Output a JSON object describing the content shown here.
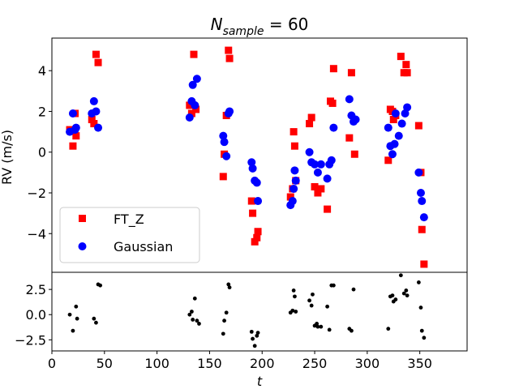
{
  "chart_data": [
    {
      "type": "scatter",
      "panel": "top",
      "title": {
        "main": "N",
        "sub": "sample",
        "rest": " = 60"
      },
      "xlabel": "",
      "ylabel": "RV (m/s)",
      "xlim": [
        0,
        395
      ],
      "ylim": [
        -5.9,
        5.6
      ],
      "y_ticks": [
        4,
        2,
        0,
        -2,
        -4
      ],
      "tick_labels": [
        "4",
        "2",
        "0",
        "−2",
        "−4"
      ],
      "grid": false,
      "legend_position": "lower-left",
      "series": [
        {
          "name": "FT_Z",
          "marker": "square",
          "color": "#ff0000",
          "points": [
            [
              17,
              1.1
            ],
            [
              20,
              0.3
            ],
            [
              22,
              1.9
            ],
            [
              23,
              0.8
            ],
            [
              38,
              1.6
            ],
            [
              40,
              1.4
            ],
            [
              42,
              4.8
            ],
            [
              44,
              4.4
            ],
            [
              131,
              2.3
            ],
            [
              133,
              1.9
            ],
            [
              135,
              4.8
            ],
            [
              137,
              2.1
            ],
            [
              163,
              -1.2
            ],
            [
              164,
              -0.1
            ],
            [
              166,
              1.8
            ],
            [
              168,
              5.0
            ],
            [
              169,
              4.6
            ],
            [
              190,
              -2.4
            ],
            [
              191,
              -3.0
            ],
            [
              193,
              -4.4
            ],
            [
              195,
              -4.2
            ],
            [
              196,
              -3.9
            ],
            [
              227,
              -2.2
            ],
            [
              229,
              -1.8
            ],
            [
              230,
              1.0
            ],
            [
              231,
              0.3
            ],
            [
              232,
              -1.4
            ],
            [
              245,
              1.4
            ],
            [
              247,
              1.7
            ],
            [
              250,
              -1.7
            ],
            [
              253,
              -2.0
            ],
            [
              256,
              -1.8
            ],
            [
              262,
              -2.8
            ],
            [
              265,
              2.5
            ],
            [
              267,
              2.4
            ],
            [
              268,
              4.1
            ],
            [
              283,
              0.7
            ],
            [
              285,
              3.9
            ],
            [
              288,
              -0.1
            ],
            [
              320,
              -0.4
            ],
            [
              322,
              2.1
            ],
            [
              324,
              2.0
            ],
            [
              325,
              1.6
            ],
            [
              327,
              1.8
            ],
            [
              332,
              4.7
            ],
            [
              335,
              3.9
            ],
            [
              337,
              4.3
            ],
            [
              338,
              3.9
            ],
            [
              349,
              1.3
            ],
            [
              351,
              -1.0
            ],
            [
              352,
              -3.8
            ],
            [
              354,
              -5.5
            ]
          ]
        },
        {
          "name": "Gaussian",
          "marker": "circle",
          "color": "#0000ff",
          "points": [
            [
              17,
              1.0
            ],
            [
              20,
              1.9
            ],
            [
              22,
              1.1
            ],
            [
              23,
              1.2
            ],
            [
              38,
              1.9
            ],
            [
              40,
              2.5
            ],
            [
              42,
              2.0
            ],
            [
              44,
              1.2
            ],
            [
              131,
              1.7
            ],
            [
              133,
              2.5
            ],
            [
              134,
              3.3
            ],
            [
              136,
              2.3
            ],
            [
              138,
              3.6
            ],
            [
              163,
              0.8
            ],
            [
              164,
              0.5
            ],
            [
              166,
              -0.2
            ],
            [
              168,
              1.9
            ],
            [
              169,
              2.0
            ],
            [
              190,
              -0.5
            ],
            [
              191,
              -0.8
            ],
            [
              193,
              -1.4
            ],
            [
              195,
              -1.5
            ],
            [
              196,
              -2.4
            ],
            [
              227,
              -2.6
            ],
            [
              229,
              -2.4
            ],
            [
              230,
              -1.8
            ],
            [
              231,
              -0.9
            ],
            [
              232,
              -1.4
            ],
            [
              245,
              0.0
            ],
            [
              247,
              -0.5
            ],
            [
              250,
              -0.6
            ],
            [
              253,
              -1.0
            ],
            [
              256,
              -0.6
            ],
            [
              262,
              -1.3
            ],
            [
              264,
              -0.6
            ],
            [
              266,
              -0.4
            ],
            [
              268,
              1.2
            ],
            [
              283,
              2.6
            ],
            [
              285,
              1.8
            ],
            [
              287,
              1.5
            ],
            [
              289,
              1.6
            ],
            [
              320,
              1.2
            ],
            [
              322,
              0.3
            ],
            [
              324,
              -0.1
            ],
            [
              326,
              0.4
            ],
            [
              327,
              1.9
            ],
            [
              330,
              0.8
            ],
            [
              333,
              1.4
            ],
            [
              336,
              1.9
            ],
            [
              338,
              2.2
            ],
            [
              349,
              -1.0
            ],
            [
              351,
              -2.0
            ],
            [
              352,
              -2.4
            ],
            [
              354,
              -3.2
            ]
          ]
        }
      ]
    },
    {
      "type": "scatter",
      "panel": "bottom",
      "xlabel": "t",
      "ylabel": "",
      "xlim": [
        0,
        395
      ],
      "ylim": [
        -3.6,
        4.2
      ],
      "x_ticks": [
        0,
        50,
        100,
        150,
        200,
        250,
        300,
        350
      ],
      "x_tick_labels": [
        "0",
        "50",
        "100",
        "150",
        "200",
        "250",
        "300",
        "350"
      ],
      "y_ticks": [
        2.5,
        0.0,
        -2.5
      ],
      "tick_labels": [
        "2.5",
        "0.0",
        "−2.5"
      ],
      "series": [
        {
          "color": "#000000",
          "marker": "dot",
          "points": [
            [
              17,
              0.0
            ],
            [
              20,
              -1.6
            ],
            [
              23,
              0.8
            ],
            [
              24,
              -0.4
            ],
            [
              40,
              -0.4
            ],
            [
              42,
              -0.8
            ],
            [
              44,
              3.0
            ],
            [
              46,
              2.9
            ],
            [
              131,
              0.0
            ],
            [
              133,
              0.3
            ],
            [
              134,
              -0.5
            ],
            [
              136,
              1.6
            ],
            [
              138,
              -0.6
            ],
            [
              140,
              -0.9
            ],
            [
              163,
              -1.9
            ],
            [
              164,
              -0.6
            ],
            [
              166,
              0.2
            ],
            [
              168,
              3.0
            ],
            [
              169,
              2.7
            ],
            [
              190,
              -1.7
            ],
            [
              191,
              -2.4
            ],
            [
              193,
              -3.1
            ],
            [
              195,
              -2.1
            ],
            [
              196,
              -1.8
            ],
            [
              227,
              0.2
            ],
            [
              229,
              0.4
            ],
            [
              230,
              2.4
            ],
            [
              231,
              1.8
            ],
            [
              232,
              0.3
            ],
            [
              245,
              1.4
            ],
            [
              247,
              0.9
            ],
            [
              248,
              2.0
            ],
            [
              250,
              -1.1
            ],
            [
              252,
              -0.9
            ],
            [
              253,
              -1.2
            ],
            [
              256,
              -1.2
            ],
            [
              262,
              0.8
            ],
            [
              264,
              -1.5
            ],
            [
              266,
              2.9
            ],
            [
              268,
              2.9
            ],
            [
              283,
              -1.4
            ],
            [
              285,
              -1.6
            ],
            [
              287,
              2.5
            ],
            [
              320,
              -1.4
            ],
            [
              322,
              1.8
            ],
            [
              324,
              1.9
            ],
            [
              325,
              1.3
            ],
            [
              327,
              1.5
            ],
            [
              332,
              3.9
            ],
            [
              335,
              2.1
            ],
            [
              337,
              2.4
            ],
            [
              338,
              1.9
            ],
            [
              349,
              3.2
            ],
            [
              351,
              0.7
            ],
            [
              352,
              -1.6
            ],
            [
              354,
              -2.3
            ]
          ]
        }
      ]
    }
  ]
}
